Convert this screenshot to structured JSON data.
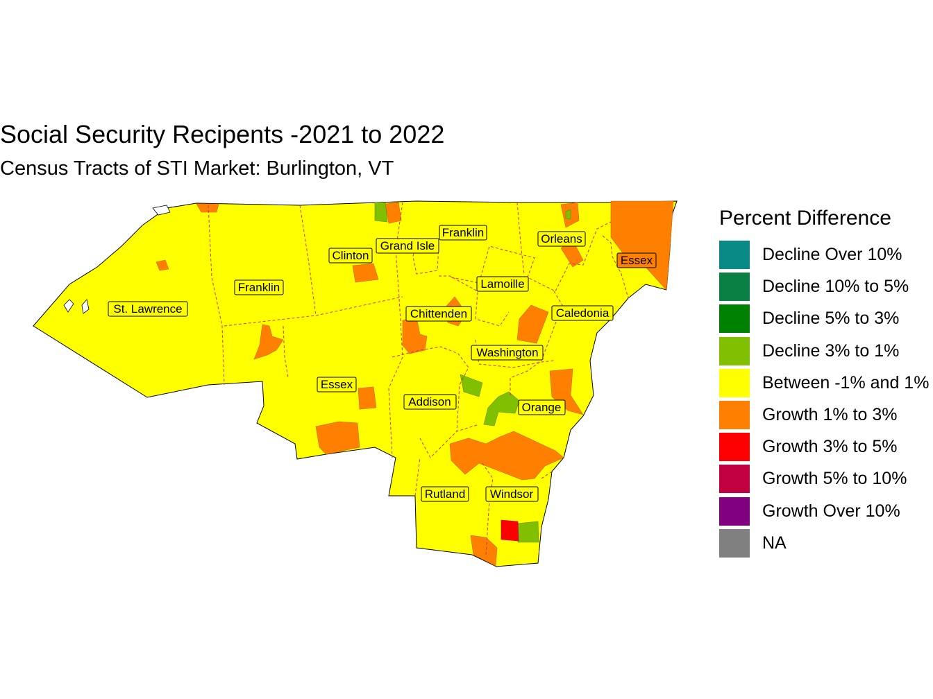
{
  "title": "Social Security Recipents -2021 to 2022",
  "subtitle": "Census Tracts of STI Market: Burlington, VT",
  "legend": {
    "title": "Percent Difference",
    "items": [
      {
        "label": "Decline Over 10%",
        "color": "#0a8a87"
      },
      {
        "label": "Decline 10% to 5%",
        "color": "#0a8044"
      },
      {
        "label": "Decline 5% to 3%",
        "color": "#008000"
      },
      {
        "label": "Decline 3% to 1%",
        "color": "#80c000"
      },
      {
        "label": "Between -1% and 1%",
        "color": "#ffff00"
      },
      {
        "label": "Growth 1% to 3%",
        "color": "#ff8000"
      },
      {
        "label": "Growth 3% to 5%",
        "color": "#ff0000"
      },
      {
        "label": "Growth 5% to 10%",
        "color": "#c00040"
      },
      {
        "label": "Growth Over 10%",
        "color": "#800080"
      },
      {
        "label": "NA",
        "color": "#808080"
      }
    ]
  },
  "counties": [
    {
      "id": "st-lawrence",
      "label": "St. Lawrence"
    },
    {
      "id": "franklin-ny",
      "label": "Franklin"
    },
    {
      "id": "clinton",
      "label": "Clinton"
    },
    {
      "id": "grand-isle",
      "label": "Grand Isle"
    },
    {
      "id": "franklin-vt",
      "label": "Franklin"
    },
    {
      "id": "orleans",
      "label": "Orleans"
    },
    {
      "id": "essex-vt",
      "label": "Essex"
    },
    {
      "id": "lamoille",
      "label": "Lamoille"
    },
    {
      "id": "chittenden",
      "label": "Chittenden"
    },
    {
      "id": "caledonia",
      "label": "Caledonia"
    },
    {
      "id": "washington",
      "label": "Washington"
    },
    {
      "id": "essex-ny",
      "label": "Essex"
    },
    {
      "id": "addison",
      "label": "Addison"
    },
    {
      "id": "orange",
      "label": "Orange"
    },
    {
      "id": "rutland",
      "label": "Rutland"
    },
    {
      "id": "windsor",
      "label": "Windsor"
    }
  ]
}
